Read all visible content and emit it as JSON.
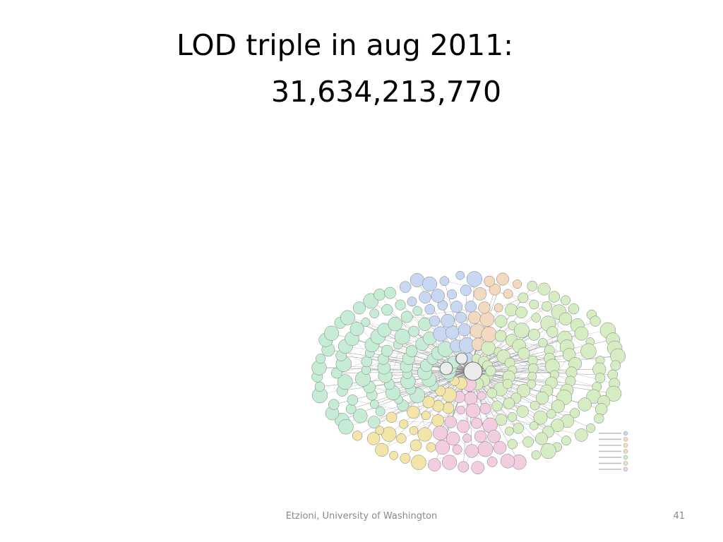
{
  "slide": {
    "title_line1": "LOD triple in aug 2011:",
    "title_line2": "31,634,213,770",
    "footer": "Etzioni, University of Washington",
    "page_number": "41"
  },
  "cloud": {
    "colors": {
      "media": "#c9d8f2",
      "geographic": "#f3d9bf",
      "publications": "#f3e4a8",
      "user_generated": "#e9e0b0",
      "government": "#c6ecd6",
      "cross_domain": "#d6edc3",
      "life_sciences": "#f2cde0",
      "neutral": "#ececec"
    }
  }
}
